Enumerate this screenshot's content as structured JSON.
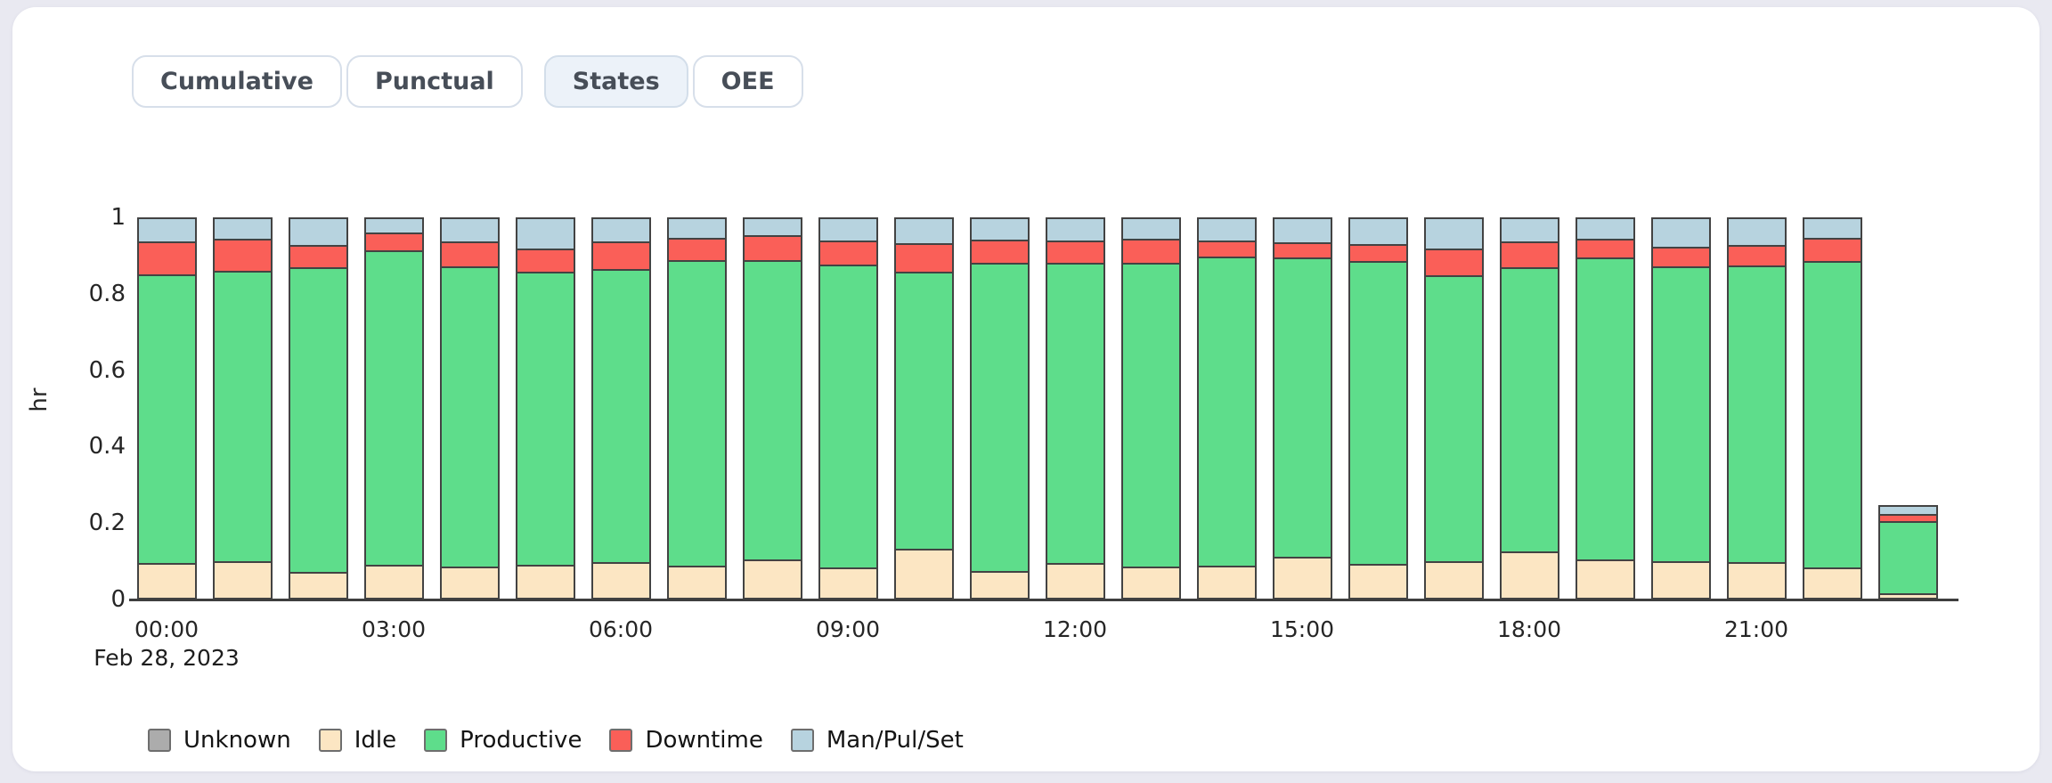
{
  "page": {
    "background": "#E9E9F1",
    "card_background": "#FFFFFF"
  },
  "toolbar": {
    "tabs": [
      {
        "label": "Cumulative",
        "selected": false
      },
      {
        "label": "Punctual",
        "selected": false
      },
      {
        "label": "States",
        "selected": true
      },
      {
        "label": "OEE",
        "selected": false
      }
    ]
  },
  "chart_data": {
    "type": "bar",
    "stacked": true,
    "title": "",
    "xlabel": "",
    "ylabel": "hr",
    "ylim": [
      0,
      1
    ],
    "grid": false,
    "legend_position": "bottom",
    "x_annotation": "Feb 28, 2023",
    "y_ticks": [
      "0",
      "0.2",
      "0.4",
      "0.6",
      "0.8",
      "1"
    ],
    "x_ticks": [
      {
        "hour": 0,
        "label": "00:00"
      },
      {
        "hour": 3,
        "label": "03:00"
      },
      {
        "hour": 6,
        "label": "06:00"
      },
      {
        "hour": 9,
        "label": "09:00"
      },
      {
        "hour": 12,
        "label": "12:00"
      },
      {
        "hour": 15,
        "label": "15:00"
      },
      {
        "hour": 18,
        "label": "18:00"
      },
      {
        "hour": 21,
        "label": "21:00"
      }
    ],
    "x": [
      "00:00",
      "01:00",
      "02:00",
      "03:00",
      "04:00",
      "05:00",
      "06:00",
      "07:00",
      "08:00",
      "09:00",
      "10:00",
      "11:00",
      "12:00",
      "13:00",
      "14:00",
      "15:00",
      "16:00",
      "17:00",
      "18:00",
      "19:00",
      "20:00",
      "21:00",
      "22:00",
      "23:00"
    ],
    "series": [
      {
        "name": "Unknown",
        "color": "#ACACAC",
        "values": [
          0,
          0,
          0,
          0,
          0,
          0,
          0,
          0,
          0,
          0,
          0,
          0,
          0,
          0,
          0,
          0,
          0,
          0,
          0,
          0,
          0,
          0,
          0,
          0
        ]
      },
      {
        "name": "Idle",
        "color": "#FCE6C3",
        "values": [
          0.095,
          0.1,
          0.072,
          0.091,
          0.087,
          0.092,
          0.098,
          0.089,
          0.106,
          0.085,
          0.133,
          0.074,
          0.096,
          0.087,
          0.089,
          0.111,
          0.093,
          0.101,
          0.126,
          0.105,
          0.1,
          0.099,
          0.083,
          0.016
        ]
      },
      {
        "name": "Productive",
        "color": "#5EDD8B",
        "values": [
          0.756,
          0.76,
          0.798,
          0.822,
          0.784,
          0.766,
          0.767,
          0.8,
          0.783,
          0.791,
          0.724,
          0.807,
          0.785,
          0.794,
          0.809,
          0.785,
          0.792,
          0.747,
          0.744,
          0.791,
          0.772,
          0.776,
          0.804,
          0.188
        ]
      },
      {
        "name": "Downtime",
        "color": "#FA5F58",
        "values": [
          0.086,
          0.085,
          0.058,
          0.047,
          0.067,
          0.06,
          0.073,
          0.058,
          0.064,
          0.063,
          0.076,
          0.06,
          0.059,
          0.064,
          0.042,
          0.038,
          0.046,
          0.07,
          0.067,
          0.047,
          0.052,
          0.053,
          0.06,
          0.02
        ]
      },
      {
        "name": "Man/Pul/Set",
        "color": "#B7D3DF",
        "values": [
          0.063,
          0.056,
          0.072,
          0.04,
          0.062,
          0.082,
          0.062,
          0.053,
          0.047,
          0.061,
          0.067,
          0.059,
          0.06,
          0.055,
          0.06,
          0.066,
          0.069,
          0.082,
          0.063,
          0.057,
          0.076,
          0.072,
          0.053,
          0.024
        ]
      }
    ]
  }
}
